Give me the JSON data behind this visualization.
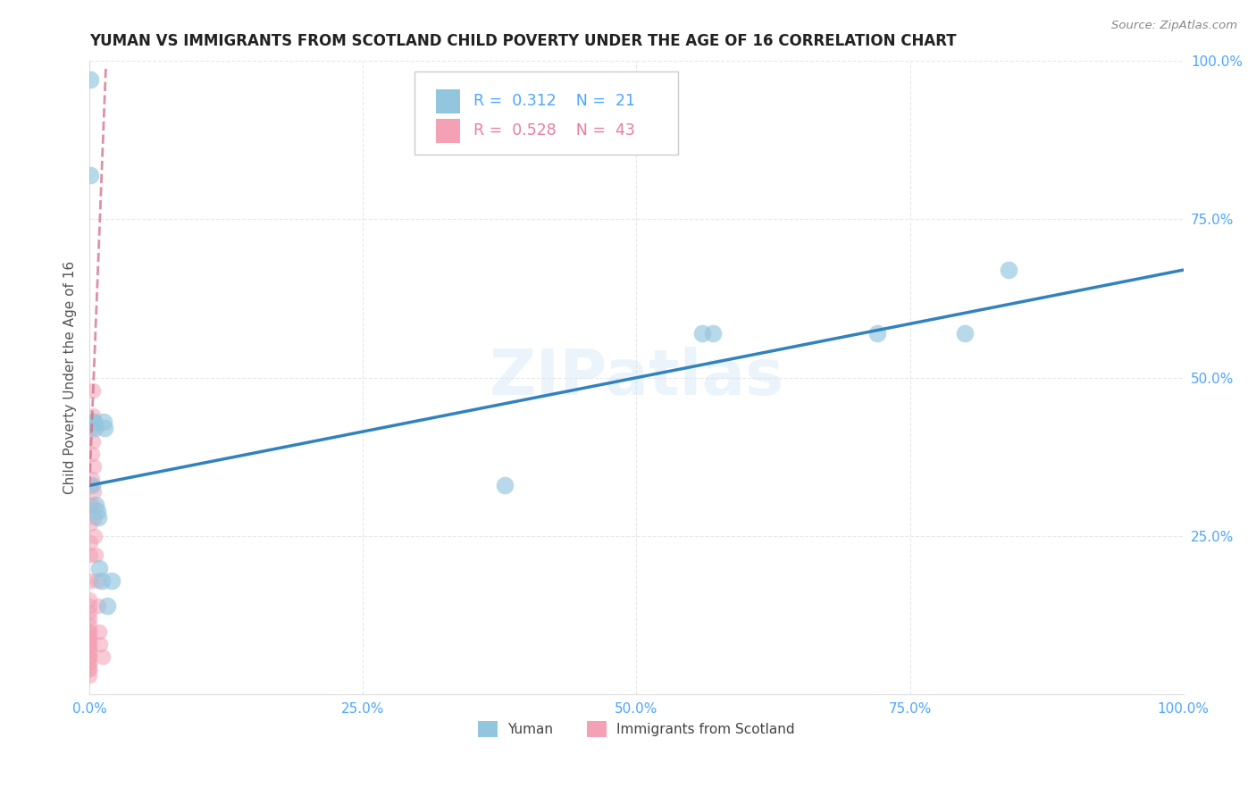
{
  "title": "YUMAN VS IMMIGRANTS FROM SCOTLAND CHILD POVERTY UNDER THE AGE OF 16 CORRELATION CHART",
  "source": "Source: ZipAtlas.com",
  "ylabel": "Child Poverty Under the Age of 16",
  "xlim": [
    0,
    1.0
  ],
  "ylim": [
    0,
    1.0
  ],
  "xticks": [
    0.0,
    0.25,
    0.5,
    0.75,
    1.0
  ],
  "yticks": [
    0.25,
    0.5,
    0.75,
    1.0
  ],
  "xticklabels": [
    "0.0%",
    "25.0%",
    "50.0%",
    "75.0%",
    "100.0%"
  ],
  "yticklabels": [
    "25.0%",
    "50.0%",
    "75.0%",
    "100.0%"
  ],
  "blue_color": "#92c5de",
  "pink_color": "#f4a0b5",
  "blue_line_color": "#3182bd",
  "pink_line_color": "#d46b8a",
  "axis_tick_color": "#4da6ff",
  "grid_color": "#e8e8e8",
  "watermark": "ZIPatlas",
  "yuman_x": [
    0.001,
    0.001,
    0.002,
    0.003,
    0.004,
    0.005,
    0.006,
    0.007,
    0.008,
    0.009,
    0.011,
    0.013,
    0.014,
    0.016,
    0.02,
    0.38,
    0.56,
    0.57,
    0.72,
    0.8,
    0.84
  ],
  "yuman_y": [
    0.97,
    0.82,
    0.33,
    0.43,
    0.43,
    0.42,
    0.3,
    0.29,
    0.28,
    0.2,
    0.18,
    0.43,
    0.42,
    0.14,
    0.18,
    0.33,
    0.57,
    0.57,
    0.57,
    0.57,
    0.67
  ],
  "scotland_x": [
    0.0,
    0.0,
    0.0,
    0.0,
    0.0,
    0.0,
    0.0,
    0.0,
    0.0,
    0.0,
    0.0,
    0.0,
    0.0,
    0.0,
    0.0,
    0.0,
    0.0,
    0.0,
    0.0,
    0.0,
    0.001,
    0.001,
    0.001,
    0.001,
    0.001,
    0.001,
    0.002,
    0.002,
    0.002,
    0.002,
    0.003,
    0.003,
    0.003,
    0.004,
    0.004,
    0.005,
    0.005,
    0.006,
    0.007,
    0.008,
    0.009,
    0.01,
    0.012
  ],
  "scotland_y": [
    0.04,
    0.04,
    0.05,
    0.05,
    0.06,
    0.06,
    0.07,
    0.07,
    0.08,
    0.08,
    0.09,
    0.09,
    0.1,
    0.1,
    0.11,
    0.12,
    0.13,
    0.14,
    0.15,
    0.03,
    0.33,
    0.3,
    0.27,
    0.24,
    0.22,
    0.18,
    0.42,
    0.38,
    0.34,
    0.3,
    0.48,
    0.44,
    0.4,
    0.36,
    0.32,
    0.28,
    0.25,
    0.22,
    0.18,
    0.14,
    0.1,
    0.08,
    0.06
  ],
  "blue_trendline_x0": 0.0,
  "blue_trendline_y0": 0.33,
  "blue_trendline_x1": 1.0,
  "blue_trendline_y1": 0.67,
  "pink_trendline_x0": 0.0,
  "pink_trendline_y0": 0.33,
  "pink_trendline_x1": 0.015,
  "pink_trendline_y1": 0.99
}
